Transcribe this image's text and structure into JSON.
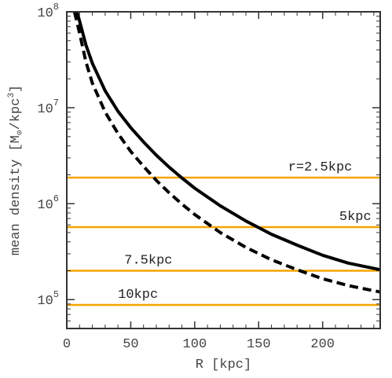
{
  "chart_data": {
    "type": "line",
    "title": "",
    "xlabel": "R [kpc]",
    "ylabel": "mean density [M⊙/kpc³]",
    "ylabel_parts": {
      "main": "mean density [M",
      "sub": "⊙",
      "mid": "/kpc",
      "sup": "3",
      "end": "]"
    },
    "xlim": [
      0,
      245
    ],
    "ylim": [
      50000,
      100000000
    ],
    "yscale": "log",
    "xticks": [
      0,
      50,
      100,
      150,
      200
    ],
    "yticks": [
      {
        "value": 100000,
        "base": "10",
        "exp": "5"
      },
      {
        "value": 1000000,
        "base": "10",
        "exp": "6"
      },
      {
        "value": 10000000,
        "base": "10",
        "exp": "7"
      },
      {
        "value": 100000000,
        "base": "10",
        "exp": "8"
      }
    ],
    "grid": false,
    "series": [
      {
        "style": "solid",
        "color": "#000000",
        "x": [
          8,
          10,
          15,
          20,
          30,
          40,
          50,
          60,
          70,
          80,
          90,
          100,
          120,
          140,
          160,
          180,
          200,
          220,
          245
        ],
        "y": [
          100000000,
          80000000,
          45000000,
          29000000,
          15000000,
          9200000,
          6200000,
          4400000,
          3200000,
          2400000,
          1850000,
          1450000,
          950000,
          660000,
          480000,
          370000,
          290000,
          240000,
          205000
        ]
      },
      {
        "style": "dashed",
        "color": "#000000",
        "x": [
          6,
          10,
          15,
          20,
          30,
          40,
          50,
          60,
          70,
          80,
          90,
          100,
          120,
          140,
          160,
          180,
          200,
          220,
          245
        ],
        "y": [
          100000000,
          60000000,
          30000000,
          18000000,
          9000000,
          5400000,
          3500000,
          2450000,
          1750000,
          1300000,
          990000,
          770000,
          500000,
          350000,
          260000,
          205000,
          165000,
          140000,
          120000
        ]
      }
    ],
    "reference_lines": [
      {
        "label": "r=2.5kpc",
        "y": 1870000,
        "color": "#f5a300",
        "label_x": 173,
        "label_above": true
      },
      {
        "label": "5kpc",
        "y": 570000,
        "color": "#f5a300",
        "label_x": 213,
        "label_above": true
      },
      {
        "label": "7.5kpc",
        "y": 200000,
        "color": "#f5a300",
        "label_x": 45,
        "label_above": true
      },
      {
        "label": "10kpc",
        "y": 88000,
        "color": "#f5a300",
        "label_x": 40,
        "label_above": true
      }
    ]
  }
}
